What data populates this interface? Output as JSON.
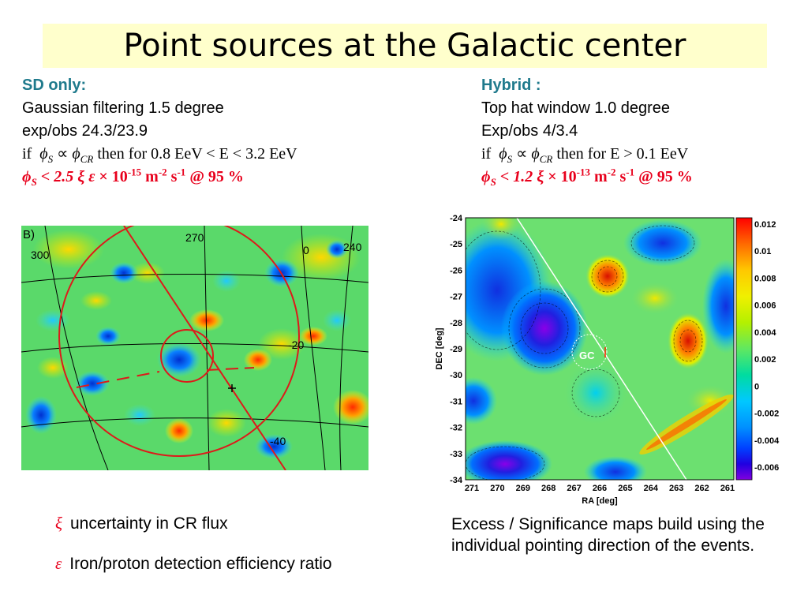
{
  "title": "Point sources at the Galactic center",
  "sd": {
    "header": "SD only:",
    "line1": "Gaussian filtering 1.5 degree",
    "line2": "exp/obs 24.3/23.9",
    "if_prefix": "if",
    "phi": "ϕ",
    "sub_s": "S",
    "prop": "∝",
    "sub_cr": "CR",
    "condition": "then for 0.8 EeV < E < 3.2 EeV",
    "limit_lt": "< 2.5",
    "xi": "ξ",
    "eps": "ε",
    "times": "× 10",
    "exp": "-15",
    "unit1": " m",
    "exp_m": "-2",
    "unit2": " s",
    "exp_s": "-1",
    "cl": " @ 95 %"
  },
  "hybrid": {
    "header": "Hybrid :",
    "line1": "Top hat window 1.0 degree",
    "line2": "Exp/obs 4/3.4",
    "if_prefix": "if",
    "phi": "ϕ",
    "sub_s": "S",
    "prop": "∝",
    "sub_cr": "CR",
    "condition": "then for E > 0.1 EeV",
    "limit_lt": "< 1.2",
    "xi": "ξ",
    "times": "× 10",
    "exp": "-13",
    "unit1": " m",
    "exp_m": "-2",
    "unit2": " s",
    "exp_s": "-1",
    "cl": " @ 95 %"
  },
  "left_map": {
    "panel_label": "B)",
    "grid_labels": [
      "300",
      "270",
      "0",
      "240",
      "-20",
      "-40"
    ]
  },
  "right_map": {
    "gc_label": "GC",
    "ylabel": "DEC [deg]",
    "xlabel": "RA [deg]",
    "y_ticks": [
      "-24",
      "-25",
      "-26",
      "-27",
      "-28",
      "-29",
      "-30",
      "-31",
      "-32",
      "-33",
      "-34"
    ],
    "x_ticks": [
      "271",
      "270",
      "269",
      "268",
      "267",
      "266",
      "265",
      "264",
      "263",
      "262",
      "261"
    ],
    "colorbar_ticks": [
      "0.012",
      "0.01",
      "0.008",
      "0.006",
      "0.004",
      "0.002",
      "0",
      "-0.002",
      "-0.004",
      "-0.006"
    ],
    "colorbar_colors": [
      "#ff0000",
      "#ff6a00",
      "#ffc800",
      "#f0f000",
      "#b4f000",
      "#60e860",
      "#00dca0",
      "#00c8ff",
      "#0090ff",
      "#0040ff",
      "#2000e0",
      "#8000e0"
    ]
  },
  "notes": {
    "xi_symbol": "ξ",
    "xi_text": "uncertainty in CR flux",
    "eps_symbol": "ε",
    "eps_text": "Iron/proton detection efficiency ratio",
    "description": "Excess / Significance maps build using the individual pointing direction of the events."
  }
}
